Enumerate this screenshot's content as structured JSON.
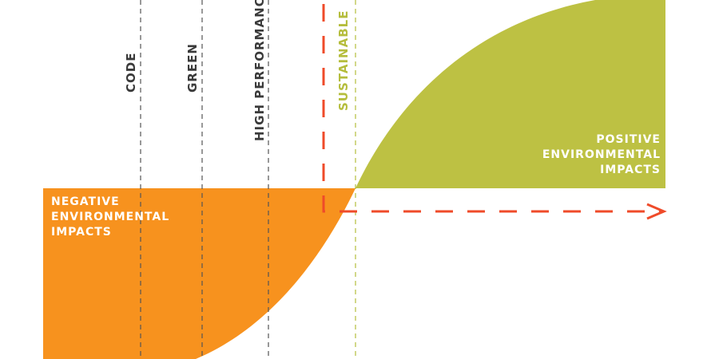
{
  "levels": [
    {
      "label": "CODE"
    },
    {
      "label": "GREEN"
    },
    {
      "label": "HIGH PERFORMANCE"
    },
    {
      "label": "SUSTAINABLE"
    }
  ],
  "negative_label": "NEGATIVE\nENVIRONMENTAL\nIMPACTS",
  "positive_label": "POSITIVE\nENVIRONMENTAL\nIMPACTS",
  "colors": {
    "negative": "#f7921e",
    "positive": "#bdc143",
    "arrow": "#ef4b2a",
    "level_line": "#555555",
    "sustainable": "#b5bd3c"
  }
}
